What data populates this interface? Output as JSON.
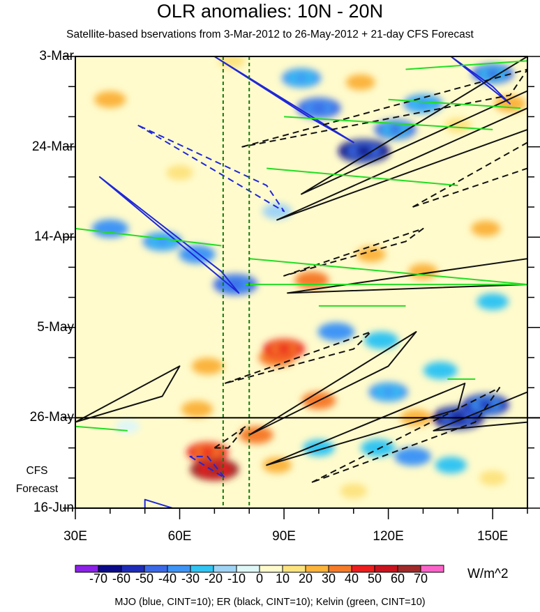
{
  "chart_data": {
    "type": "heatmap",
    "title": "OLR anomalies: 10N - 20N",
    "subtitle": "Satellite-based bservations from 3-Mar-2012 to 26-May-2012 + 21-day CFS Forecast",
    "x_label_unit": "longitude",
    "x_range": [
      30,
      160
    ],
    "x_ticks": [
      {
        "value": 30,
        "label": "30E"
      },
      {
        "value": 60,
        "label": "60E"
      },
      {
        "value": 90,
        "label": "90E"
      },
      {
        "value": 120,
        "label": "120E"
      },
      {
        "value": 150,
        "label": "150E"
      }
    ],
    "y_range_days": [
      0,
      105
    ],
    "y_ticks": [
      {
        "day": 0,
        "label": "3-Mar"
      },
      {
        "day": 21,
        "label": "24-Mar"
      },
      {
        "day": 42,
        "label": "14-Apr"
      },
      {
        "day": 63,
        "label": "5-May"
      },
      {
        "day": 84,
        "label": "26-May"
      },
      {
        "day": 105,
        "label": "16-Jun"
      }
    ],
    "forecast_start_day": 84,
    "forecast_label": [
      "CFS",
      "Forecast"
    ],
    "reference_longitudes": [
      72.5,
      80
    ],
    "colorbar": {
      "units": "W/m^2",
      "levels": [
        -70,
        -60,
        -50,
        -40,
        -30,
        -20,
        -10,
        0,
        10,
        20,
        30,
        40,
        50,
        60,
        70
      ],
      "tick_labels": [
        "-70",
        "-60",
        "-50",
        "-40",
        "-30",
        "-20",
        "-10",
        "0",
        "10",
        "20",
        "30",
        "40",
        "50",
        "60",
        "70"
      ],
      "colors": [
        "#8b22e6",
        "#0b0b8a",
        "#1e2cb8",
        "#3c6ae6",
        "#3f95f5",
        "#32c4f2",
        "#a0d4f5",
        "#dff7f7",
        "#fffbcc",
        "#fde380",
        "#fbb43c",
        "#f67c2a",
        "#ec1e1e",
        "#c8141e",
        "#a02a2a",
        "#fa64c8"
      ]
    },
    "anomaly_features": [
      {
        "lon": 40,
        "day": 10,
        "value": 25
      },
      {
        "lon": 75,
        "day": 1,
        "value": 15
      },
      {
        "lon": 95,
        "day": 5,
        "value": -40
      },
      {
        "lon": 100,
        "day": 12,
        "value": -50
      },
      {
        "lon": 113,
        "day": 22,
        "value": -65
      },
      {
        "lon": 122,
        "day": 17,
        "value": -45
      },
      {
        "lon": 130,
        "day": 11,
        "value": -40
      },
      {
        "lon": 150,
        "day": 4,
        "value": -45
      },
      {
        "lon": 155,
        "day": 11,
        "value": 25
      },
      {
        "lon": 140,
        "day": 16,
        "value": 15
      },
      {
        "lon": 112,
        "day": 6,
        "value": 20
      },
      {
        "lon": 60,
        "day": 27,
        "value": 15
      },
      {
        "lon": 40,
        "day": 40,
        "value": -35
      },
      {
        "lon": 55,
        "day": 43,
        "value": -40
      },
      {
        "lon": 65,
        "day": 46,
        "value": -35
      },
      {
        "lon": 76,
        "day": 53,
        "value": -50
      },
      {
        "lon": 98,
        "day": 52,
        "value": 30
      },
      {
        "lon": 115,
        "day": 46,
        "value": 20
      },
      {
        "lon": 88,
        "day": 36,
        "value": -20
      },
      {
        "lon": 130,
        "day": 50,
        "value": 20
      },
      {
        "lon": 148,
        "day": 40,
        "value": 20
      },
      {
        "lon": 150,
        "day": 57,
        "value": -25
      },
      {
        "lon": 88,
        "day": 70,
        "value": 35
      },
      {
        "lon": 90,
        "day": 68,
        "value": 45
      },
      {
        "lon": 68,
        "day": 72,
        "value": 25
      },
      {
        "lon": 105,
        "day": 64,
        "value": -35
      },
      {
        "lon": 118,
        "day": 66,
        "value": -30
      },
      {
        "lon": 100,
        "day": 80,
        "value": 30
      },
      {
        "lon": 120,
        "day": 78,
        "value": -40
      },
      {
        "lon": 135,
        "day": 73,
        "value": -30
      },
      {
        "lon": 140,
        "day": 84,
        "value": -65
      },
      {
        "lon": 148,
        "day": 81,
        "value": -55
      },
      {
        "lon": 128,
        "day": 84,
        "value": 25
      },
      {
        "lon": 65,
        "day": 82,
        "value": 25
      },
      {
        "lon": 68,
        "day": 92,
        "value": 45
      },
      {
        "lon": 70,
        "day": 96,
        "value": 60
      },
      {
        "lon": 82,
        "day": 88,
        "value": 30
      },
      {
        "lon": 88,
        "day": 95,
        "value": 20
      },
      {
        "lon": 45,
        "day": 86,
        "value": -10
      },
      {
        "lon": 100,
        "day": 91,
        "value": -25
      },
      {
        "lon": 117,
        "day": 91,
        "value": -30
      },
      {
        "lon": 127,
        "day": 93,
        "value": -35
      },
      {
        "lon": 138,
        "day": 95,
        "value": -25
      },
      {
        "lon": 110,
        "day": 101,
        "value": 15
      },
      {
        "lon": 150,
        "day": 98,
        "value": 15
      }
    ],
    "mjo_contours": [
      {
        "line": "solid",
        "points": [
          [
            70,
            0
          ],
          [
            110,
            20
          ],
          [
            97,
            14
          ],
          [
            70,
            0
          ]
        ]
      },
      {
        "line": "solid",
        "points": [
          [
            138,
            0
          ],
          [
            155,
            11
          ],
          [
            150,
            7
          ],
          [
            138,
            0
          ]
        ]
      },
      {
        "line": "dashed",
        "points": [
          [
            48,
            16
          ],
          [
            90,
            36
          ],
          [
            85,
            30
          ],
          [
            48,
            16
          ]
        ]
      },
      {
        "line": "solid",
        "points": [
          [
            37,
            28
          ],
          [
            77,
            55
          ],
          [
            72,
            50
          ],
          [
            37,
            28
          ]
        ]
      },
      {
        "line": "solid",
        "points": [
          [
            50,
            103
          ],
          [
            62,
            106
          ],
          [
            50,
            106
          ],
          [
            50,
            103
          ]
        ]
      },
      {
        "line": "dashed",
        "points": [
          [
            63,
            93
          ],
          [
            73,
            98
          ],
          [
            68,
            93
          ],
          [
            63,
            93
          ]
        ]
      }
    ],
    "er_contours": [
      {
        "line": "solid",
        "points": [
          [
            95,
            32
          ],
          [
            160,
            0
          ],
          [
            160,
            8
          ],
          [
            95,
            32
          ]
        ]
      },
      {
        "line": "solid",
        "points": [
          [
            88,
            38
          ],
          [
            160,
            12
          ],
          [
            160,
            17
          ],
          [
            88,
            38
          ]
        ]
      },
      {
        "line": "dashed",
        "points": [
          [
            78,
            21
          ],
          [
            160,
            3
          ],
          [
            155,
            9
          ],
          [
            78,
            21
          ]
        ]
      },
      {
        "line": "dashed",
        "points": [
          [
            127,
            35
          ],
          [
            160,
            20
          ],
          [
            160,
            26
          ],
          [
            127,
            35
          ]
        ]
      },
      {
        "line": "dashed",
        "points": [
          [
            90,
            51
          ],
          [
            130,
            40
          ],
          [
            125,
            43
          ],
          [
            90,
            51
          ]
        ]
      },
      {
        "line": "solid",
        "points": [
          [
            91,
            55
          ],
          [
            160,
            47
          ],
          [
            160,
            53
          ],
          [
            91,
            55
          ]
        ]
      },
      {
        "line": "dashed",
        "points": [
          [
            73,
            76
          ],
          [
            115,
            64
          ],
          [
            110,
            68
          ],
          [
            73,
            76
          ]
        ]
      },
      {
        "line": "solid",
        "points": [
          [
            80,
            88
          ],
          [
            128,
            64
          ],
          [
            120,
            72
          ],
          [
            80,
            88
          ]
        ]
      },
      {
        "line": "solid",
        "points": [
          [
            85,
            95
          ],
          [
            142,
            76
          ],
          [
            140,
            82
          ],
          [
            85,
            95
          ]
        ]
      },
      {
        "line": "dashed",
        "points": [
          [
            98,
            99
          ],
          [
            152,
            77
          ],
          [
            145,
            85
          ],
          [
            98,
            99
          ]
        ]
      },
      {
        "line": "solid",
        "points": [
          [
            133,
            87
          ],
          [
            160,
            78
          ],
          [
            160,
            85
          ],
          [
            133,
            87
          ]
        ]
      },
      {
        "line": "solid",
        "points": [
          [
            30,
            85
          ],
          [
            60,
            72
          ],
          [
            55,
            79
          ],
          [
            30,
            85
          ]
        ]
      },
      {
        "line": "dashed",
        "points": [
          [
            70,
            91
          ],
          [
            79,
            86
          ],
          [
            74,
            91
          ],
          [
            70,
            91
          ]
        ]
      }
    ],
    "kelvin_contours": [
      {
        "line": "solid",
        "points": [
          [
            125,
            3
          ],
          [
            160,
            1
          ]
        ]
      },
      {
        "line": "solid",
        "points": [
          [
            120,
            10
          ],
          [
            158,
            12
          ]
        ]
      },
      {
        "line": "solid",
        "points": [
          [
            90,
            14
          ],
          [
            150,
            17
          ]
        ]
      },
      {
        "line": "solid",
        "points": [
          [
            85,
            26
          ],
          [
            140,
            30
          ]
        ]
      },
      {
        "line": "solid",
        "points": [
          [
            30,
            40
          ],
          [
            72,
            44
          ]
        ]
      },
      {
        "line": "solid",
        "points": [
          [
            80,
            47
          ],
          [
            160,
            53
          ]
        ]
      },
      {
        "line": "solid",
        "points": [
          [
            79,
            53
          ],
          [
            160,
            53
          ]
        ]
      },
      {
        "line": "solid",
        "points": [
          [
            100,
            58
          ],
          [
            125,
            58
          ]
        ]
      },
      {
        "line": "solid",
        "points": [
          [
            137,
            75
          ],
          [
            145,
            75
          ]
        ]
      },
      {
        "line": "solid",
        "points": [
          [
            30,
            86
          ],
          [
            45,
            87
          ]
        ]
      }
    ],
    "caption": "MJO (blue, CINT=10); ER (black, CINT=10); Kelvin (green, CINT=10)"
  }
}
